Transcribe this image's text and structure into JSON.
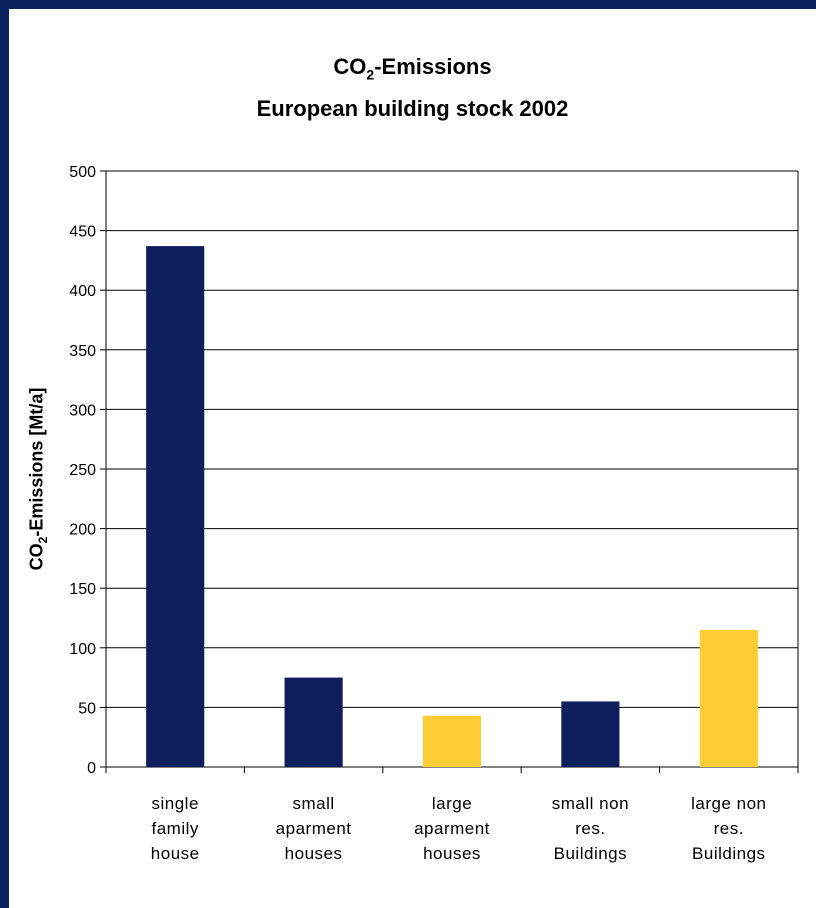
{
  "title": {
    "line1_prefix": "CO",
    "line1_sub": "2",
    "line1_suffix": "-Emissions",
    "line2": "European building stock 2002"
  },
  "colors": {
    "background": "#0a2160",
    "primary_bar": "#0f1f5e",
    "highlight_bar": "#ffcc33"
  },
  "chart_data": {
    "type": "bar",
    "title": "CO2-Emissions European building stock 2002",
    "xlabel": "",
    "ylabel": "CO2-Emissions [Mt/a]",
    "ylabel_prefix": "CO",
    "ylabel_sub": "2",
    "ylabel_suffix": "-Emissions [Mt/a]",
    "ylim": [
      0,
      500
    ],
    "yticks": [
      0,
      50,
      100,
      150,
      200,
      250,
      300,
      350,
      400,
      450,
      500
    ],
    "grid": true,
    "legend": "none",
    "categories": [
      [
        "single",
        "family",
        "house"
      ],
      [
        "small",
        "aparment",
        "houses"
      ],
      [
        "large",
        "aparment",
        "houses"
      ],
      [
        "small non",
        "res.",
        "Buildings"
      ],
      [
        "large non",
        "res.",
        "Buildings"
      ]
    ],
    "values": [
      437,
      75,
      43,
      55,
      115
    ],
    "bar_colors": [
      "#0f1f5e",
      "#0f1f5e",
      "#ffcc33",
      "#0f1f5e",
      "#ffcc33"
    ]
  }
}
